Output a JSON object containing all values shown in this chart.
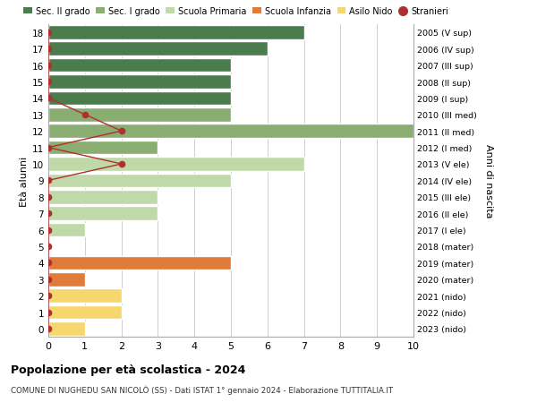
{
  "ages": [
    18,
    17,
    16,
    15,
    14,
    13,
    12,
    11,
    10,
    9,
    8,
    7,
    6,
    5,
    4,
    3,
    2,
    1,
    0
  ],
  "right_labels": [
    "2005 (V sup)",
    "2006 (IV sup)",
    "2007 (III sup)",
    "2008 (II sup)",
    "2009 (I sup)",
    "2010 (III med)",
    "2011 (II med)",
    "2012 (I med)",
    "2013 (V ele)",
    "2014 (IV ele)",
    "2015 (III ele)",
    "2016 (II ele)",
    "2017 (I ele)",
    "2018 (mater)",
    "2019 (mater)",
    "2020 (mater)",
    "2021 (nido)",
    "2022 (nido)",
    "2023 (nido)"
  ],
  "values": [
    7,
    6,
    5,
    5,
    5,
    5,
    10,
    3,
    7,
    5,
    3,
    3,
    1,
    0,
    5,
    1,
    2,
    2,
    1
  ],
  "colors": [
    "#4a7c4e",
    "#4a7c4e",
    "#4a7c4e",
    "#4a7c4e",
    "#4a7c4e",
    "#8aad72",
    "#8aad72",
    "#8aad72",
    "#c0d9a8",
    "#c0d9a8",
    "#c0d9a8",
    "#c0d9a8",
    "#c0d9a8",
    "#e07b39",
    "#e07b39",
    "#e07b39",
    "#f5d76e",
    "#f5d76e",
    "#f5d76e"
  ],
  "stranieri_ages": [
    18,
    17,
    16,
    15,
    14,
    13,
    12,
    11,
    10,
    9,
    8,
    7,
    6,
    5,
    4,
    3,
    2,
    1,
    0
  ],
  "stranieri_values": [
    0,
    0,
    0,
    0,
    0,
    1,
    2,
    0,
    2,
    0,
    0,
    0,
    0,
    0,
    0,
    0,
    0,
    0,
    0
  ],
  "stranieri_color": "#b03030",
  "legend_items": [
    {
      "label": "Sec. II grado",
      "color": "#4a7c4e"
    },
    {
      "label": "Sec. I grado",
      "color": "#8aad72"
    },
    {
      "label": "Scuola Primaria",
      "color": "#c0d9a8"
    },
    {
      "label": "Scuola Infanzia",
      "color": "#e07b39"
    },
    {
      "label": "Asilo Nido",
      "color": "#f5d76e"
    },
    {
      "label": "Stranieri",
      "color": "#b03030"
    }
  ],
  "ylabel_left": "Età alunni",
  "ylabel_right": "Anni di nascita",
  "title": "Popolazione per età scolastica - 2024",
  "subtitle": "COMUNE DI NUGHEDU SAN NICOLÒ (SS) - Dati ISTAT 1° gennaio 2024 - Elaborazione TUTTITALIA.IT",
  "xlim": [
    0,
    10
  ],
  "ylim_min": -0.5,
  "ylim_max": 18.5,
  "bg_color": "#ffffff",
  "bar_edge_color": "#ffffff",
  "grid_color": "#d0d0d0"
}
